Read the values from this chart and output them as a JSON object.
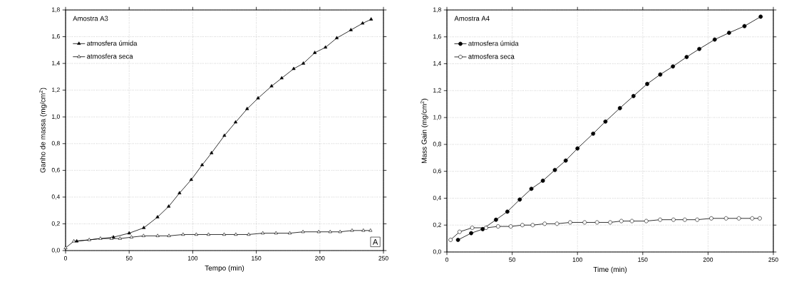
{
  "chart_data": [
    {
      "type": "line",
      "title": "Amostra A3",
      "xlabel": "Tempo (min)",
      "ylabel": "Ganho de massa (mg/cm$^{2}$)",
      "xlim": [
        0,
        250
      ],
      "ylim": [
        0,
        1.8
      ],
      "xticks": [
        0,
        50,
        100,
        150,
        200,
        250
      ],
      "yticks": [
        {
          "value": 0,
          "label": "0,0"
        },
        {
          "value": 0.2,
          "label": "0,2"
        },
        {
          "value": 0.4,
          "label": "0,4"
        },
        {
          "value": 0.6,
          "label": "0,6"
        },
        {
          "value": 0.8,
          "label": "0,8"
        },
        {
          "value": 1.0,
          "label": "1,0"
        },
        {
          "value": 1.2,
          "label": "1,2"
        },
        {
          "value": 1.4,
          "label": "1,4"
        },
        {
          "value": 1.6,
          "label": "1,6"
        },
        {
          "value": 1.8,
          "label": "1,8"
        }
      ],
      "grid": true,
      "legend": "top left",
      "line_style": "solid",
      "annotations": [
        "A"
      ],
      "series": [
        {
          "name": "atmosfera úmida",
          "color": "#000000",
          "marker": "triangle",
          "x": [
            8.8,
            37.6,
            50,
            61.5,
            72.3,
            81.1,
            89.6,
            98.8,
            107.4,
            114.8,
            124.9,
            133.7,
            142.8,
            151.4,
            162,
            170,
            179.4,
            187,
            196,
            204.4,
            213.3,
            224.4,
            233.6,
            240.3
          ],
          "values": [
            0.07,
            0.1,
            0.13,
            0.17,
            0.25,
            0.33,
            0.43,
            0.53,
            0.64,
            0.73,
            0.86,
            0.96,
            1.06,
            1.14,
            1.23,
            1.29,
            1.36,
            1.4,
            1.48,
            1.52,
            1.59,
            1.65,
            1.7,
            1.73
          ]
        },
        {
          "name": "atmosfera seca",
          "color": "#000000",
          "marker": "triangle",
          "x": [
            0,
            6.5,
            18.6,
            27.4,
            36.2,
            42.8,
            51.8,
            61.3,
            72.4,
            81.3,
            92.4,
            102.8,
            112.4,
            124.7,
            133.9,
            144,
            155.1,
            165.5,
            176.3,
            186.7,
            199.1,
            208.1,
            215.9,
            225.3,
            234.2,
            239.8
          ],
          "values": [
            0.02,
            0.07,
            0.08,
            0.09,
            0.09,
            0.09,
            0.1,
            0.11,
            0.11,
            0.11,
            0.12,
            0.12,
            0.12,
            0.12,
            0.12,
            0.12,
            0.13,
            0.13,
            0.13,
            0.14,
            0.14,
            0.14,
            0.14,
            0.15,
            0.15,
            0.15
          ]
        }
      ]
    },
    {
      "type": "line",
      "title": "Amostra A4",
      "xlabel": "Time (min)",
      "ylabel": "Mass Gain (mg/cm$^{2}$)",
      "xlim": [
        0,
        250
      ],
      "ylim": [
        0,
        1.8
      ],
      "xticks": [
        0,
        50,
        100,
        150,
        200,
        250
      ],
      "yticks": [
        {
          "value": 0,
          "label": "0,0"
        },
        {
          "value": 0.2,
          "label": "0,2"
        },
        {
          "value": 0.4,
          "label": "0,4"
        },
        {
          "value": 0.6,
          "label": "0,6"
        },
        {
          "value": 0.8,
          "label": "0,8"
        },
        {
          "value": 1.0,
          "label": "1,0"
        },
        {
          "value": 1.2,
          "label": "1,2"
        },
        {
          "value": 1.4,
          "label": "1,4"
        },
        {
          "value": 1.6,
          "label": "1,6"
        },
        {
          "value": 1.8,
          "label": "1,8"
        }
      ],
      "grid": true,
      "legend": "top left",
      "line_style": "solid",
      "series": [
        {
          "name": "atmosfera úmida",
          "color": "#000000",
          "marker": "circle",
          "x": [
            8.5,
            18.6,
            27.4,
            37.6,
            46.3,
            55.8,
            64.7,
            73.5,
            82.7,
            91,
            100,
            112,
            121.4,
            132.5,
            142.9,
            153.4,
            163.4,
            173.1,
            183.6,
            193.3,
            205.1,
            216.1,
            227.9,
            240.3
          ],
          "values": [
            0.09,
            0.14,
            0.17,
            0.24,
            0.3,
            0.39,
            0.47,
            0.53,
            0.61,
            0.68,
            0.77,
            0.88,
            0.97,
            1.07,
            1.16,
            1.25,
            1.32,
            1.38,
            1.45,
            1.51,
            1.58,
            1.63,
            1.68,
            1.75
          ]
        },
        {
          "name": "atmosfera seca",
          "color": "#000000",
          "marker": "circle",
          "x": [
            2.8,
            9.7,
            19.4,
            30,
            39.2,
            48.9,
            57.8,
            65.7,
            74.9,
            84.3,
            94.4,
            105.5,
            115,
            125.1,
            133.6,
            141.7,
            152.7,
            163.3,
            173.5,
            182.2,
            191.7,
            202.5,
            213.8,
            223.6,
            233.8,
            239.6
          ],
          "values": [
            0.09,
            0.15,
            0.18,
            0.18,
            0.19,
            0.19,
            0.2,
            0.2,
            0.21,
            0.21,
            0.22,
            0.22,
            0.22,
            0.22,
            0.23,
            0.23,
            0.23,
            0.24,
            0.24,
            0.24,
            0.24,
            0.25,
            0.25,
            0.25,
            0.25,
            0.25
          ]
        }
      ]
    }
  ]
}
